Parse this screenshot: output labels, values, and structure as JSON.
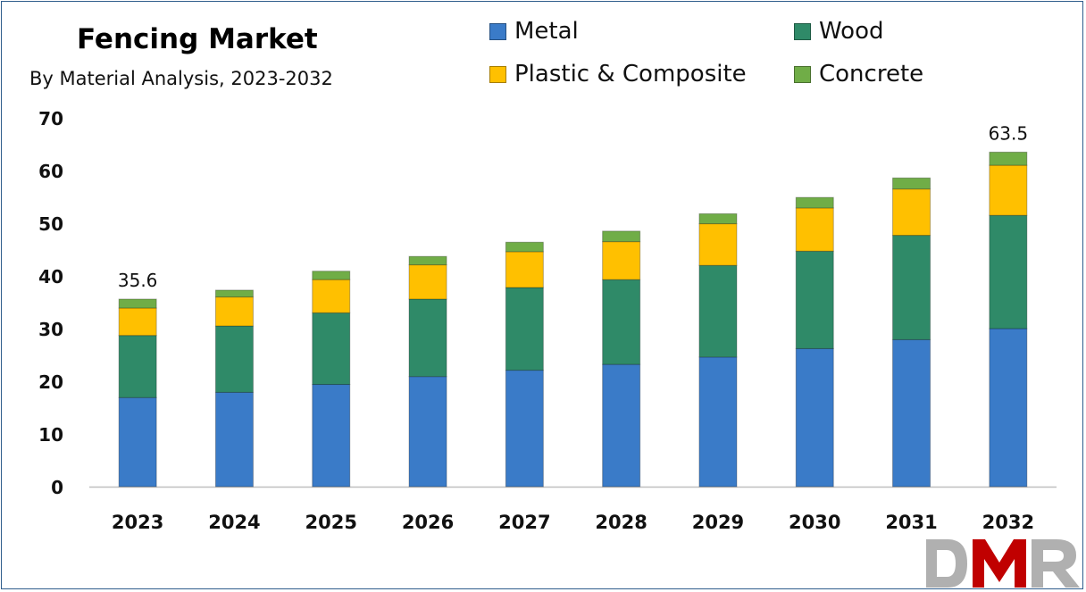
{
  "chart_data": {
    "type": "bar",
    "stacked": true,
    "title": "Fencing Market",
    "subtitle": "By Material Analysis, 2023-2032",
    "categories": [
      "2023",
      "2024",
      "2025",
      "2026",
      "2027",
      "2028",
      "2029",
      "2030",
      "2031",
      "2032"
    ],
    "series": [
      {
        "name": "Metal",
        "color": "#3a7bc8",
        "values": [
          16.9,
          17.9,
          19.4,
          20.9,
          22.1,
          23.2,
          24.6,
          26.2,
          27.9,
          30.0
        ]
      },
      {
        "name": "Wood",
        "color": "#2f8a68",
        "values": [
          11.8,
          12.6,
          13.6,
          14.7,
          15.7,
          16.1,
          17.4,
          18.5,
          19.8,
          21.5
        ]
      },
      {
        "name": "Plastic & Composite",
        "color": "#ffc000",
        "values": [
          5.2,
          5.5,
          6.3,
          6.5,
          6.8,
          7.2,
          7.9,
          8.2,
          8.8,
          9.5
        ]
      },
      {
        "name": "Concrete",
        "color": "#70ad47",
        "values": [
          1.7,
          1.3,
          1.6,
          1.6,
          1.8,
          2.0,
          1.9,
          2.0,
          2.1,
          2.5
        ]
      }
    ],
    "totals_labels": {
      "2023": "35.6",
      "2032": "63.5"
    },
    "ylim": [
      0,
      70
    ],
    "yticks": [
      0,
      10,
      20,
      30,
      40,
      50,
      60,
      70
    ],
    "xlabel": "",
    "ylabel": "",
    "grid": false,
    "legend_position": "top-right"
  },
  "logo": {
    "text": "DMR",
    "colors": [
      "#b0b0b0",
      "#c00000"
    ]
  }
}
